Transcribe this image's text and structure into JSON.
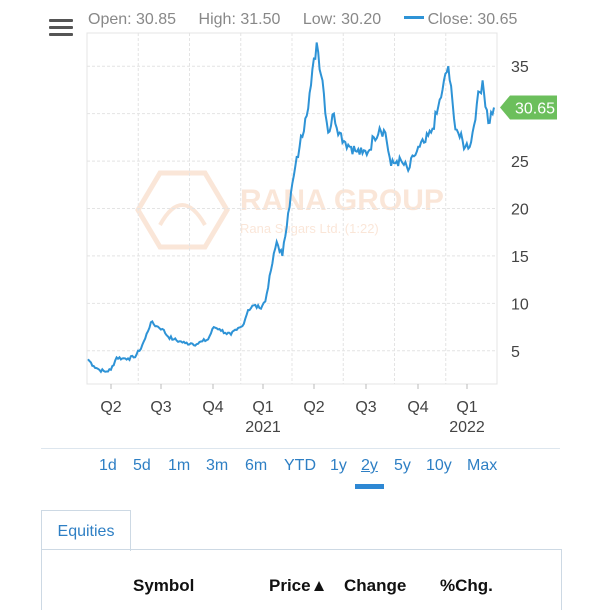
{
  "header": {
    "open_label": "Open: 30.85",
    "high_label": "High: 31.50",
    "low_label": "Low: 30.20",
    "close_label": "Close: 30.65"
  },
  "current_price_tag": "30.65",
  "watermark": {
    "name": "RANA GROUP",
    "sub": "Rana Sugars Ltd. (1:22)"
  },
  "colors": {
    "series": "#2e93d6",
    "tag": "#6cbf5c",
    "link": "#2e7fc4"
  },
  "chart_data": {
    "type": "line",
    "y_ticks": [
      "35",
      "30",
      "25",
      "20",
      "15",
      "10",
      "5"
    ],
    "x_ticks": [
      {
        "label": "Q2",
        "year": ""
      },
      {
        "label": "Q3",
        "year": ""
      },
      {
        "label": "Q4",
        "year": ""
      },
      {
        "label": "Q1",
        "year": "2021"
      },
      {
        "label": "Q2",
        "year": ""
      },
      {
        "label": "Q3",
        "year": ""
      },
      {
        "label": "Q4",
        "year": ""
      },
      {
        "label": "Q1",
        "year": "2022"
      }
    ],
    "ylim": [
      1.5,
      38.5
    ],
    "grid": true,
    "series": [
      {
        "values": [
          4.1,
          3.4,
          3.0,
          2.8,
          3.0,
          4.3,
          4.2,
          4.2,
          4.3,
          5.0,
          6.3,
          8.0,
          7.6,
          7.3,
          6.5,
          6.2,
          6.0,
          5.8,
          5.8,
          5.7,
          6.0,
          6.2,
          7.5,
          7.3,
          6.9,
          6.7,
          7.2,
          7.6,
          9.3,
          9.8,
          9.5,
          10.2,
          13.5,
          16.5,
          15.0,
          19.5,
          23.5,
          26.5,
          29.5,
          33.0,
          37.5,
          33.5,
          28.0,
          30.0,
          28.0,
          27.0,
          26.5,
          26.0,
          25.8,
          26.0,
          27.5,
          28.5,
          28.0,
          24.5,
          25.0,
          24.8,
          24.0,
          25.5,
          26.5,
          27.0,
          28.0,
          30.0,
          32.5,
          35.0,
          29.5,
          27.5,
          26.5,
          27.0,
          31.0,
          33.5,
          29.0,
          30.65
        ]
      }
    ]
  },
  "range_selector": {
    "items": [
      "1d",
      "5d",
      "1m",
      "3m",
      "6m",
      "YTD",
      "1y",
      "2y",
      "5y",
      "10y",
      "Max"
    ],
    "active_index": 7
  },
  "tabs": {
    "equities": "Equities"
  },
  "table": {
    "headers": [
      "Symbol",
      "Price▲",
      "Change",
      "%Chg."
    ]
  }
}
